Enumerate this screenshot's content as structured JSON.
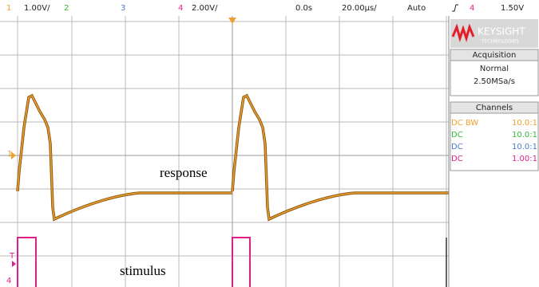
{
  "top_bar": {
    "ch1": "1",
    "ch1_scale": "1.00V/",
    "ch2": "2",
    "ch3": "3",
    "ch4": "4",
    "ch4_scale": "2.00V/",
    "time_offset": "0.0s",
    "time_scale": "20.00µs/",
    "trigger_mode": "Auto",
    "trigger_channel": "4",
    "trigger_level": "1.50V"
  },
  "brand": {
    "name": "KEYSIGHT",
    "sub": "TECHNOLOGIES"
  },
  "acquisition": {
    "title": "Acquisition",
    "mode": "Normal",
    "rate": "2.50MSa/s"
  },
  "channels": {
    "title": "Channels",
    "rows": [
      {
        "coupling": "DC BW",
        "probe": "10.0:1"
      },
      {
        "coupling": "DC",
        "probe": "10.0:1"
      },
      {
        "coupling": "DC",
        "probe": "10.0:1"
      },
      {
        "coupling": "DC",
        "probe": "1.00:1"
      }
    ]
  },
  "annotations": {
    "response": "response",
    "stimulus": "stimulus"
  },
  "markers": {
    "ch1": "1",
    "trigger": "T",
    "ch4": "4"
  }
}
